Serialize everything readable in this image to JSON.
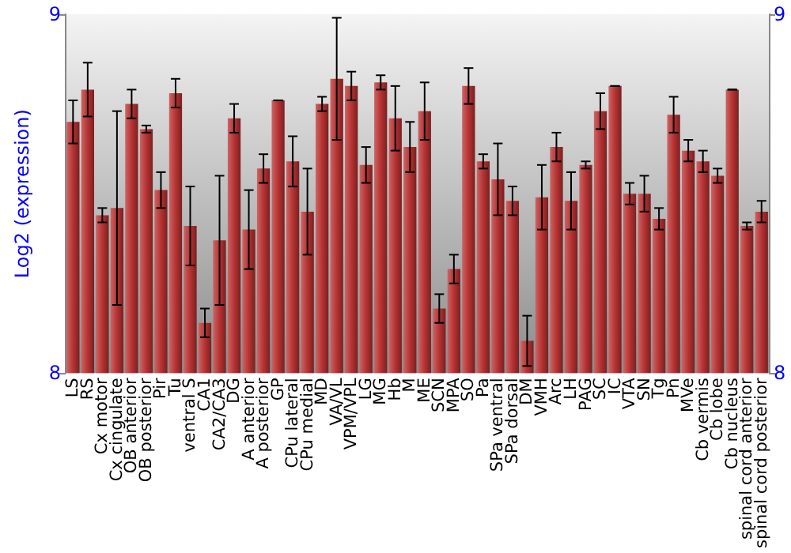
{
  "chart_data": {
    "type": "bar",
    "ylabel": "Log2 (expression)",
    "categories": [
      "LS",
      "RS",
      "Cx motor",
      "Cx cingulate",
      "OB anterior",
      "OB posterior",
      "Pir",
      "Tu",
      "ventral S",
      "CA1",
      "CA2/CA3",
      "DG",
      "A anterior",
      "A posterior",
      "GP",
      "CPu lateral",
      "CPu medial",
      "MD",
      "VA/VL",
      "VPM/VPL",
      "LG",
      "MG",
      "Hb",
      "M",
      "ME",
      "SCN",
      "MPA",
      "SO",
      "Pa",
      "SPa ventral",
      "SPa dorsal",
      "DM",
      "VMH",
      "Arc",
      "LH",
      "PAG",
      "SC",
      "IC",
      "VTA",
      "SN",
      "Tg",
      "Pn",
      "MVe",
      "Cb vermis",
      "Cb lobe",
      "Cb nucleus",
      "spinal cord anterior",
      "spinal cord posterior"
    ],
    "values": [
      8.7,
      8.79,
      8.44,
      8.46,
      8.75,
      8.68,
      8.51,
      8.78,
      8.41,
      8.14,
      8.37,
      8.71,
      8.4,
      8.57,
      8.76,
      8.59,
      8.45,
      8.75,
      8.82,
      8.8,
      8.58,
      8.81,
      8.71,
      8.63,
      8.73,
      8.18,
      8.29,
      8.8,
      8.59,
      8.54,
      8.48,
      8.09,
      8.49,
      8.63,
      8.48,
      8.58,
      8.73,
      8.8,
      8.5,
      8.5,
      8.43,
      8.72,
      8.62,
      8.59,
      8.55,
      8.79,
      8.41,
      8.45
    ],
    "errors": [
      0.06,
      0.075,
      0.02,
      0.27,
      0.04,
      0.01,
      0.05,
      0.04,
      0.11,
      0.04,
      0.18,
      0.04,
      0.11,
      0.04,
      0,
      0.07,
      0.12,
      0.02,
      0.17,
      0.04,
      0.05,
      0.02,
      0.09,
      0.07,
      0.08,
      0.04,
      0.04,
      0.05,
      0.02,
      0.1,
      0.04,
      0.07,
      0.09,
      0.04,
      0.08,
      0.01,
      0.05,
      0,
      0.03,
      0.05,
      0.03,
      0.05,
      0.03,
      0.03,
      0.02,
      0,
      0.01,
      0.03
    ],
    "color": "#b83232",
    "ylim": [
      8,
      9
    ],
    "yticks": [
      8,
      9
    ],
    "y2lim": [
      8,
      9
    ],
    "y2ticks": [
      8,
      9
    ],
    "grid": false
  }
}
